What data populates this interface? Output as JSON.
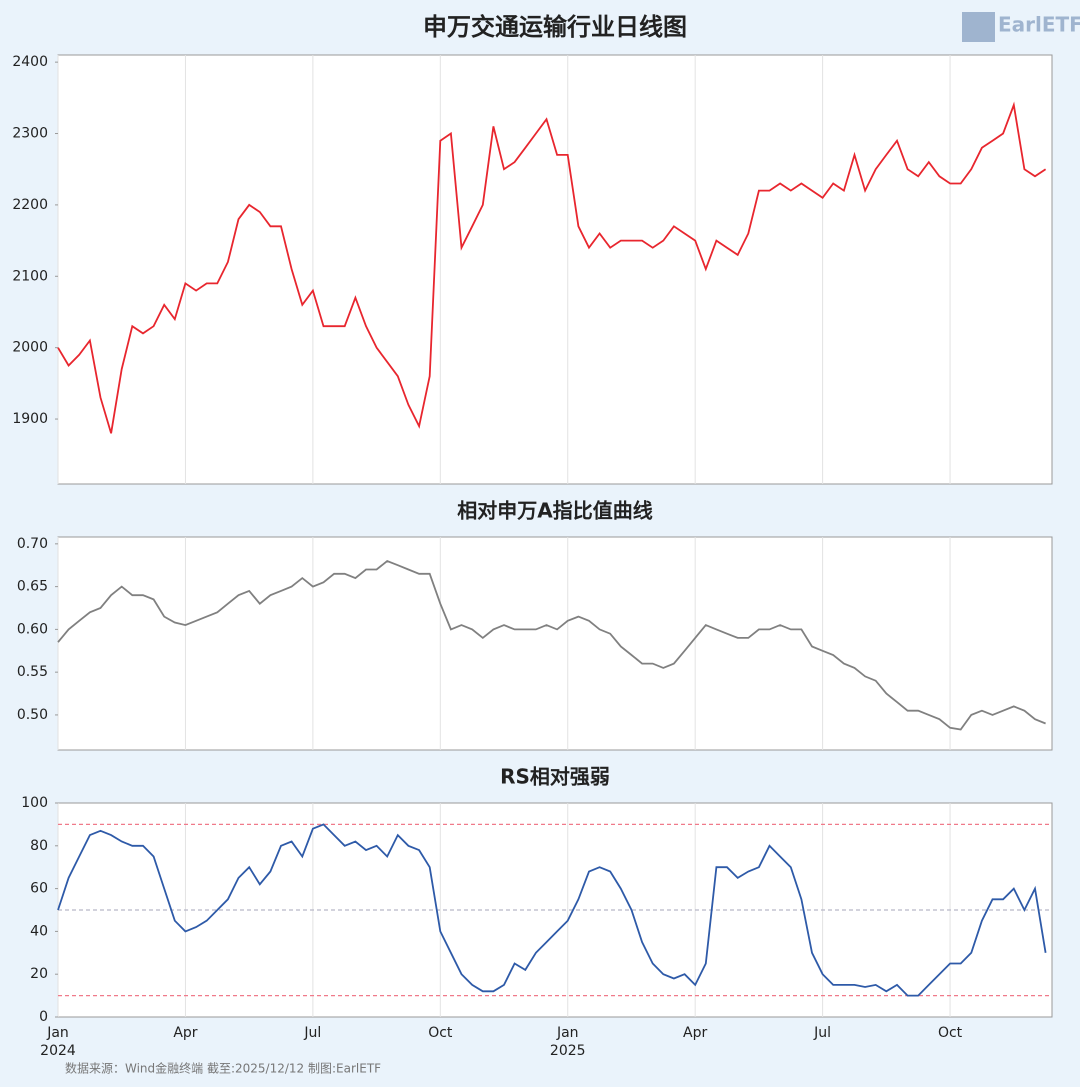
{
  "logo": "EarlETF",
  "footer": "数据来源：Wind金融终端 截至:2025/12/12 制图:EarlETF",
  "chart_data": [
    {
      "type": "line",
      "title": "申万交通运输行业日线图",
      "color": "#e8262e",
      "xlim": [
        0,
        23.4
      ],
      "ylim": [
        1809,
        2410
      ],
      "yticks": [
        1900,
        2000,
        2100,
        2200,
        2300,
        2400
      ],
      "x": [
        0,
        0.25,
        0.5,
        0.75,
        1,
        1.25,
        1.5,
        1.75,
        2,
        2.25,
        2.5,
        2.75,
        3,
        3.25,
        3.5,
        3.75,
        4,
        4.25,
        4.5,
        4.75,
        5,
        5.25,
        5.5,
        5.75,
        6,
        6.25,
        6.5,
        6.75,
        7,
        7.25,
        7.5,
        7.75,
        8,
        8.25,
        8.5,
        8.75,
        9,
        9.25,
        9.5,
        9.75,
        10,
        10.25,
        10.5,
        10.75,
        11,
        11.25,
        11.5,
        11.75,
        12,
        12.25,
        12.5,
        12.75,
        13,
        13.25,
        13.5,
        13.75,
        14,
        14.25,
        14.5,
        14.75,
        15,
        15.25,
        15.5,
        15.75,
        16,
        16.25,
        16.5,
        16.75,
        17,
        17.25,
        17.5,
        17.75,
        18,
        18.25,
        18.5,
        18.75,
        19,
        19.25,
        19.5,
        19.75,
        20,
        20.25,
        20.5,
        20.75,
        21,
        21.25,
        21.5,
        21.75,
        22,
        22.25,
        22.5,
        22.75,
        23,
        23.25
      ],
      "values": [
        2000,
        1975,
        1990,
        2010,
        1930,
        1880,
        1970,
        2030,
        2020,
        2030,
        2060,
        2040,
        2090,
        2080,
        2090,
        2090,
        2120,
        2180,
        2200,
        2190,
        2170,
        2170,
        2110,
        2060,
        2080,
        2030,
        2030,
        2030,
        2070,
        2030,
        2000,
        1980,
        1960,
        1920,
        1890,
        1960,
        2290,
        2300,
        2140,
        2170,
        2200,
        2310,
        2250,
        2260,
        2280,
        2300,
        2320,
        2270,
        2270,
        2170,
        2140,
        2160,
        2140,
        2150,
        2150,
        2150,
        2140,
        2150,
        2170,
        2160,
        2150,
        2110,
        2150,
        2140,
        2130,
        2160,
        2220,
        2220,
        2230,
        2220,
        2230,
        2220,
        2210,
        2230,
        2220,
        2270,
        2220,
        2250,
        2270,
        2290,
        2250,
        2240,
        2260,
        2240,
        2230,
        2230,
        2250,
        2280,
        2290,
        2300,
        2340,
        2250,
        2240,
        2250
      ]
    },
    {
      "type": "line",
      "title": "相对申万A指比值曲线",
      "color": "#808080",
      "xlim": [
        0,
        23.4
      ],
      "ylim": [
        0.459,
        0.708
      ],
      "yticks": [
        {
          "value": 0.5,
          "label": "0.50"
        },
        0.55,
        {
          "value": 0.6,
          "label": "0.60"
        },
        0.65,
        {
          "value": 0.7,
          "label": "0.70"
        }
      ],
      "x": [
        0,
        0.25,
        0.5,
        0.75,
        1,
        1.25,
        1.5,
        1.75,
        2,
        2.25,
        2.5,
        2.75,
        3,
        3.25,
        3.5,
        3.75,
        4,
        4.25,
        4.5,
        4.75,
        5,
        5.25,
        5.5,
        5.75,
        6,
        6.25,
        6.5,
        6.75,
        7,
        7.25,
        7.5,
        7.75,
        8,
        8.25,
        8.5,
        8.75,
        9,
        9.25,
        9.5,
        9.75,
        10,
        10.25,
        10.5,
        10.75,
        11,
        11.25,
        11.5,
        11.75,
        12,
        12.25,
        12.5,
        12.75,
        13,
        13.25,
        13.5,
        13.75,
        14,
        14.25,
        14.5,
        14.75,
        15,
        15.25,
        15.5,
        15.75,
        16,
        16.25,
        16.5,
        16.75,
        17,
        17.25,
        17.5,
        17.75,
        18,
        18.25,
        18.5,
        18.75,
        19,
        19.25,
        19.5,
        19.75,
        20,
        20.25,
        20.5,
        20.75,
        21,
        21.25,
        21.5,
        21.75,
        22,
        22.25,
        22.5,
        22.75,
        23,
        23.25
      ],
      "values": [
        0.585,
        0.6,
        0.61,
        0.62,
        0.625,
        0.64,
        0.65,
        0.64,
        0.64,
        0.635,
        0.615,
        0.608,
        0.605,
        0.61,
        0.615,
        0.62,
        0.63,
        0.64,
        0.645,
        0.63,
        0.64,
        0.645,
        0.65,
        0.66,
        0.65,
        0.655,
        0.665,
        0.665,
        0.66,
        0.67,
        0.67,
        0.68,
        0.675,
        0.67,
        0.665,
        0.665,
        0.63,
        0.6,
        0.605,
        0.6,
        0.59,
        0.6,
        0.605,
        0.6,
        0.6,
        0.6,
        0.605,
        0.6,
        0.61,
        0.615,
        0.61,
        0.6,
        0.595,
        0.58,
        0.57,
        0.56,
        0.56,
        0.555,
        0.56,
        0.575,
        0.59,
        0.605,
        0.6,
        0.595,
        0.59,
        0.59,
        0.6,
        0.6,
        0.605,
        0.6,
        0.6,
        0.58,
        0.575,
        0.57,
        0.56,
        0.555,
        0.545,
        0.54,
        0.525,
        0.515,
        0.505,
        0.505,
        0.5,
        0.495,
        0.485,
        0.483,
        0.5,
        0.505,
        0.5,
        0.505,
        0.51,
        0.505,
        0.495,
        0.49
      ]
    },
    {
      "type": "line",
      "title": "RS相对强弱",
      "color": "#2e5aa8",
      "xlim": [
        0,
        23.4
      ],
      "ylim": [
        0,
        100
      ],
      "yticks": [
        0,
        20,
        40,
        60,
        80,
        100
      ],
      "hlines": [
        {
          "value": 90,
          "color": "#f07a8a"
        },
        {
          "value": 50,
          "color": "#b8b8c8"
        },
        {
          "value": 10,
          "color": "#f07a8a"
        }
      ],
      "xticks": [
        {
          "value": 0,
          "label": "Jan",
          "sublabel": "2024"
        },
        {
          "value": 3,
          "label": "Apr"
        },
        {
          "value": 6,
          "label": "Jul"
        },
        {
          "value": 9,
          "label": "Oct"
        },
        {
          "value": 12,
          "label": "Jan",
          "sublabel": "2025"
        },
        {
          "value": 15,
          "label": "Apr"
        },
        {
          "value": 18,
          "label": "Jul"
        },
        {
          "value": 21,
          "label": "Oct"
        }
      ],
      "x": [
        0,
        0.25,
        0.5,
        0.75,
        1,
        1.25,
        1.5,
        1.75,
        2,
        2.25,
        2.5,
        2.75,
        3,
        3.25,
        3.5,
        3.75,
        4,
        4.25,
        4.5,
        4.75,
        5,
        5.25,
        5.5,
        5.75,
        6,
        6.25,
        6.5,
        6.75,
        7,
        7.25,
        7.5,
        7.75,
        8,
        8.25,
        8.5,
        8.75,
        9,
        9.25,
        9.5,
        9.75,
        10,
        10.25,
        10.5,
        10.75,
        11,
        11.25,
        11.5,
        11.75,
        12,
        12.25,
        12.5,
        12.75,
        13,
        13.25,
        13.5,
        13.75,
        14,
        14.25,
        14.5,
        14.75,
        15,
        15.25,
        15.5,
        15.75,
        16,
        16.25,
        16.5,
        16.75,
        17,
        17.25,
        17.5,
        17.75,
        18,
        18.25,
        18.5,
        18.75,
        19,
        19.25,
        19.5,
        19.75,
        20,
        20.25,
        20.5,
        20.75,
        21,
        21.25,
        21.5,
        21.75,
        22,
        22.25,
        22.5,
        22.75,
        23,
        23.25
      ],
      "values": [
        50,
        65,
        75,
        85,
        87,
        85,
        82,
        80,
        80,
        75,
        60,
        45,
        40,
        42,
        45,
        50,
        55,
        65,
        70,
        62,
        68,
        80,
        82,
        75,
        88,
        90,
        85,
        80,
        82,
        78,
        80,
        75,
        85,
        80,
        78,
        70,
        40,
        30,
        20,
        15,
        12,
        12,
        15,
        25,
        22,
        30,
        35,
        40,
        45,
        55,
        68,
        70,
        68,
        60,
        50,
        35,
        25,
        20,
        18,
        20,
        15,
        25,
        70,
        70,
        65,
        68,
        70,
        80,
        75,
        70,
        55,
        30,
        20,
        15,
        15,
        15,
        14,
        15,
        12,
        15,
        10,
        10,
        15,
        20,
        25,
        25,
        30,
        45,
        55,
        55,
        60,
        50,
        60,
        30
      ]
    }
  ]
}
